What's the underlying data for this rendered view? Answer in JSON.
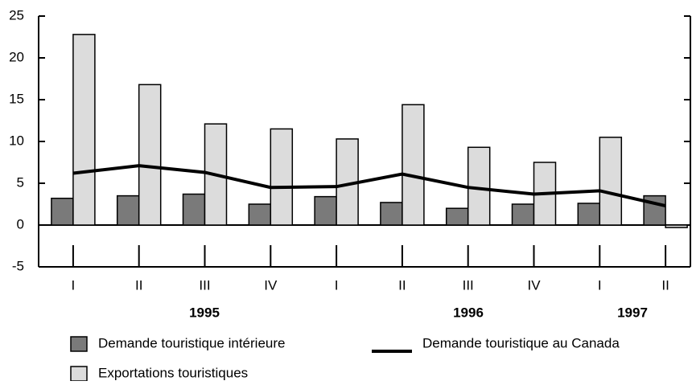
{
  "chart_data": {
    "type": "bar",
    "categories": [
      "I",
      "II",
      "III",
      "IV",
      "I",
      "II",
      "III",
      "IV",
      "I",
      "II"
    ],
    "year_labels": [
      "1995",
      "1996",
      "1997"
    ],
    "series": [
      {
        "name": "Demande touristique intérieure",
        "color": "#7a7a7a",
        "values": [
          3.2,
          3.5,
          3.7,
          2.5,
          3.4,
          2.7,
          2.0,
          2.5,
          2.6,
          3.5
        ]
      },
      {
        "name": "Exportations touristiques",
        "color": "#dcdcdc",
        "values": [
          22.8,
          16.8,
          12.1,
          11.5,
          10.3,
          14.4,
          9.3,
          7.5,
          10.5,
          -0.3
        ]
      },
      {
        "name": "Demande touristique au Canada",
        "color": "#000000",
        "type": "line",
        "values": [
          6.2,
          7.1,
          6.3,
          4.5,
          4.6,
          6.1,
          4.5,
          3.7,
          4.1,
          2.3
        ]
      }
    ],
    "ylim": [
      -5,
      25
    ],
    "yticks": [
      -5,
      0,
      5,
      10,
      15,
      20,
      25
    ]
  }
}
